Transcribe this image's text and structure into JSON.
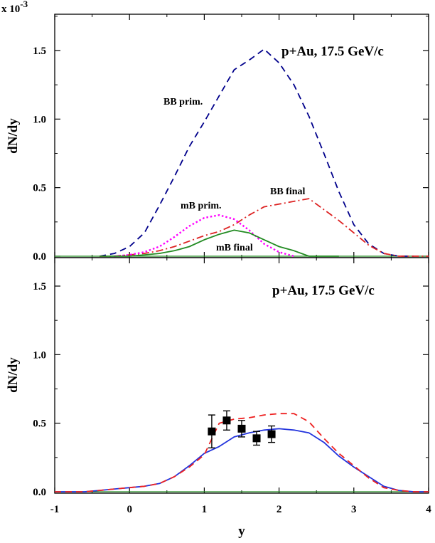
{
  "chart_data": [
    {
      "type": "line",
      "panel": "top",
      "title": "p+Au, 17.5 GeV/c",
      "xlabel": "y",
      "ylabel": "dN/dy",
      "y_scale_label": "x 10",
      "y_scale_exponent": "-3",
      "xlim": [
        -1,
        4
      ],
      "ylim": [
        0,
        1.7
      ],
      "xticks": [
        "-1",
        "0",
        "1",
        "2",
        "3",
        "4"
      ],
      "yticks": [
        "0.0",
        "0.5",
        "1.0",
        "1.5"
      ],
      "grid": false,
      "annotations": [
        "BB prim.",
        "BB final",
        "mB prim.",
        "mB final"
      ],
      "series": [
        {
          "style": "dashed",
          "color": "#00008b",
          "x": [
            -0.4,
            -0.2,
            0.0,
            0.2,
            0.4,
            0.6,
            0.8,
            1.0,
            1.2,
            1.4,
            1.6,
            1.8,
            2.0,
            2.2,
            2.4,
            2.6,
            2.8,
            3.0,
            3.2,
            3.4,
            3.6,
            3.8
          ],
          "y": [
            0.0,
            0.02,
            0.07,
            0.17,
            0.37,
            0.58,
            0.8,
            0.98,
            1.17,
            1.36,
            1.43,
            1.51,
            1.41,
            1.25,
            1.02,
            0.75,
            0.47,
            0.23,
            0.09,
            0.02,
            0.0,
            0.0
          ]
        },
        {
          "style": "dash-dot",
          "color": "#dd2222",
          "x": [
            -0.4,
            -0.2,
            0.0,
            0.2,
            0.4,
            0.6,
            0.8,
            1.0,
            1.2,
            1.4,
            1.6,
            1.8,
            2.0,
            2.2,
            2.4,
            2.6,
            2.8,
            3.0,
            3.2,
            3.4,
            3.6,
            3.8,
            4.0
          ],
          "y": [
            0.0,
            0.0,
            0.01,
            0.02,
            0.04,
            0.07,
            0.11,
            0.15,
            0.18,
            0.23,
            0.3,
            0.36,
            0.38,
            0.4,
            0.42,
            0.34,
            0.26,
            0.17,
            0.08,
            0.02,
            0.0,
            0.0,
            0.0
          ]
        },
        {
          "style": "dotted",
          "color": "#ff00ff",
          "x": [
            -0.2,
            0.0,
            0.2,
            0.4,
            0.6,
            0.8,
            1.0,
            1.2,
            1.4,
            1.6,
            1.8,
            2.0,
            2.2
          ],
          "y": [
            0.0,
            0.01,
            0.03,
            0.07,
            0.14,
            0.22,
            0.28,
            0.3,
            0.27,
            0.19,
            0.09,
            0.03,
            0.0
          ]
        },
        {
          "style": "solid",
          "color": "#228b22",
          "x": [
            -0.4,
            -0.2,
            0.0,
            0.2,
            0.4,
            0.6,
            0.8,
            1.0,
            1.2,
            1.4,
            1.6,
            1.8,
            2.0,
            2.2,
            2.4,
            2.6,
            2.8
          ],
          "y": [
            0.0,
            0.0,
            0.0,
            0.01,
            0.02,
            0.04,
            0.07,
            0.12,
            0.16,
            0.19,
            0.17,
            0.12,
            0.07,
            0.04,
            0.0,
            0.0,
            0.0
          ]
        }
      ]
    },
    {
      "type": "line",
      "panel": "bottom",
      "title": "p+Au, 17.5 GeV/c",
      "xlabel": "y",
      "ylabel": "dN/dy",
      "xlim": [
        -1,
        4
      ],
      "ylim": [
        0,
        1.7
      ],
      "xticks": [
        "-1",
        "0",
        "1",
        "2",
        "3",
        "4"
      ],
      "yticks": [
        "0.0",
        "0.5",
        "1.0",
        "1.5"
      ],
      "grid": false,
      "series": [
        {
          "style": "solid",
          "color": "#2233dd",
          "x": [
            -1.0,
            -0.6,
            -0.4,
            -0.2,
            0.0,
            0.2,
            0.4,
            0.6,
            0.8,
            1.0,
            1.2,
            1.4,
            1.6,
            1.8,
            2.0,
            2.2,
            2.4,
            2.6,
            2.8,
            3.0,
            3.2,
            3.4,
            3.6,
            3.8,
            4.0
          ],
          "y": [
            0.0,
            0.0,
            0.01,
            0.02,
            0.03,
            0.04,
            0.06,
            0.11,
            0.19,
            0.28,
            0.33,
            0.4,
            0.43,
            0.45,
            0.46,
            0.45,
            0.43,
            0.36,
            0.26,
            0.18,
            0.11,
            0.04,
            0.01,
            0.0,
            0.0
          ]
        },
        {
          "style": "dashed",
          "color": "#ee2222",
          "x": [
            -1.0,
            -0.6,
            -0.4,
            -0.2,
            0.0,
            0.2,
            0.4,
            0.6,
            0.8,
            1.0,
            1.2,
            1.4,
            1.6,
            1.8,
            2.0,
            2.2,
            2.4,
            2.6,
            2.8,
            3.0,
            3.2,
            3.4,
            3.6,
            3.8,
            4.0
          ],
          "y": [
            0.0,
            0.0,
            0.01,
            0.02,
            0.03,
            0.04,
            0.06,
            0.11,
            0.18,
            0.27,
            0.5,
            0.53,
            0.54,
            0.56,
            0.57,
            0.57,
            0.51,
            0.39,
            0.28,
            0.19,
            0.1,
            0.03,
            0.01,
            0.0,
            0.0
          ]
        }
      ],
      "points": {
        "color": "#000000",
        "x": [
          1.1,
          1.3,
          1.5,
          1.7,
          1.9
        ],
        "y": [
          0.44,
          0.52,
          0.46,
          0.39,
          0.42
        ],
        "err": [
          0.12,
          0.07,
          0.06,
          0.05,
          0.06
        ]
      }
    }
  ]
}
